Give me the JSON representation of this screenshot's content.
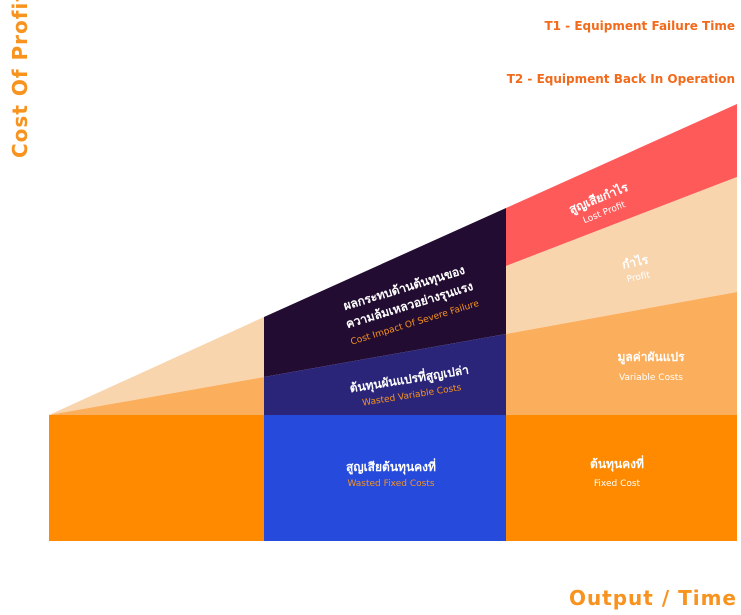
{
  "axes": {
    "y_label": "Cost Of Profit",
    "x_label": "Output / Time"
  },
  "legend": {
    "t1": "T1 - Equipment Failure Time",
    "t2": "T2 - Equipment Back In Operation"
  },
  "zones": {
    "lost_profit": {
      "thai": "สูญเสียกำไร",
      "english": "Lost Profit",
      "color": "#ff5a5a"
    },
    "profit": {
      "thai": "กำไร",
      "english": "Profit",
      "color": "#f8d5ad"
    },
    "variable_costs": {
      "thai": "มูลค่าผันแปร",
      "english": "Variable Costs",
      "color": "#fbae5c"
    },
    "fixed_cost": {
      "thai": "ต้นทุนคงที่",
      "english": "Fixed Cost",
      "color": "#ff8a00"
    },
    "cost_impact": {
      "thai_line1": "ผลกระทบด้านต้นทุนของ",
      "thai_line2": "ความล้มเหลวอย่างรุนแรง",
      "english": "Cost Impact Of Severe Failure",
      "color": "#230c32"
    },
    "wasted_variable": {
      "thai": "ต้นทุนผันแปรที่สูญเปล่า",
      "english": "Wasted Variable Costs",
      "color": "#2b2579"
    },
    "wasted_fixed": {
      "thai": "สูญเสียต้นทุนคงที่",
      "english": "Wasted Fixed Costs",
      "color": "#264bdc"
    }
  },
  "colors": {
    "accent_orange": "#f7931e",
    "english_on_dark": "#f7931e",
    "text_light": "#ffffff"
  }
}
